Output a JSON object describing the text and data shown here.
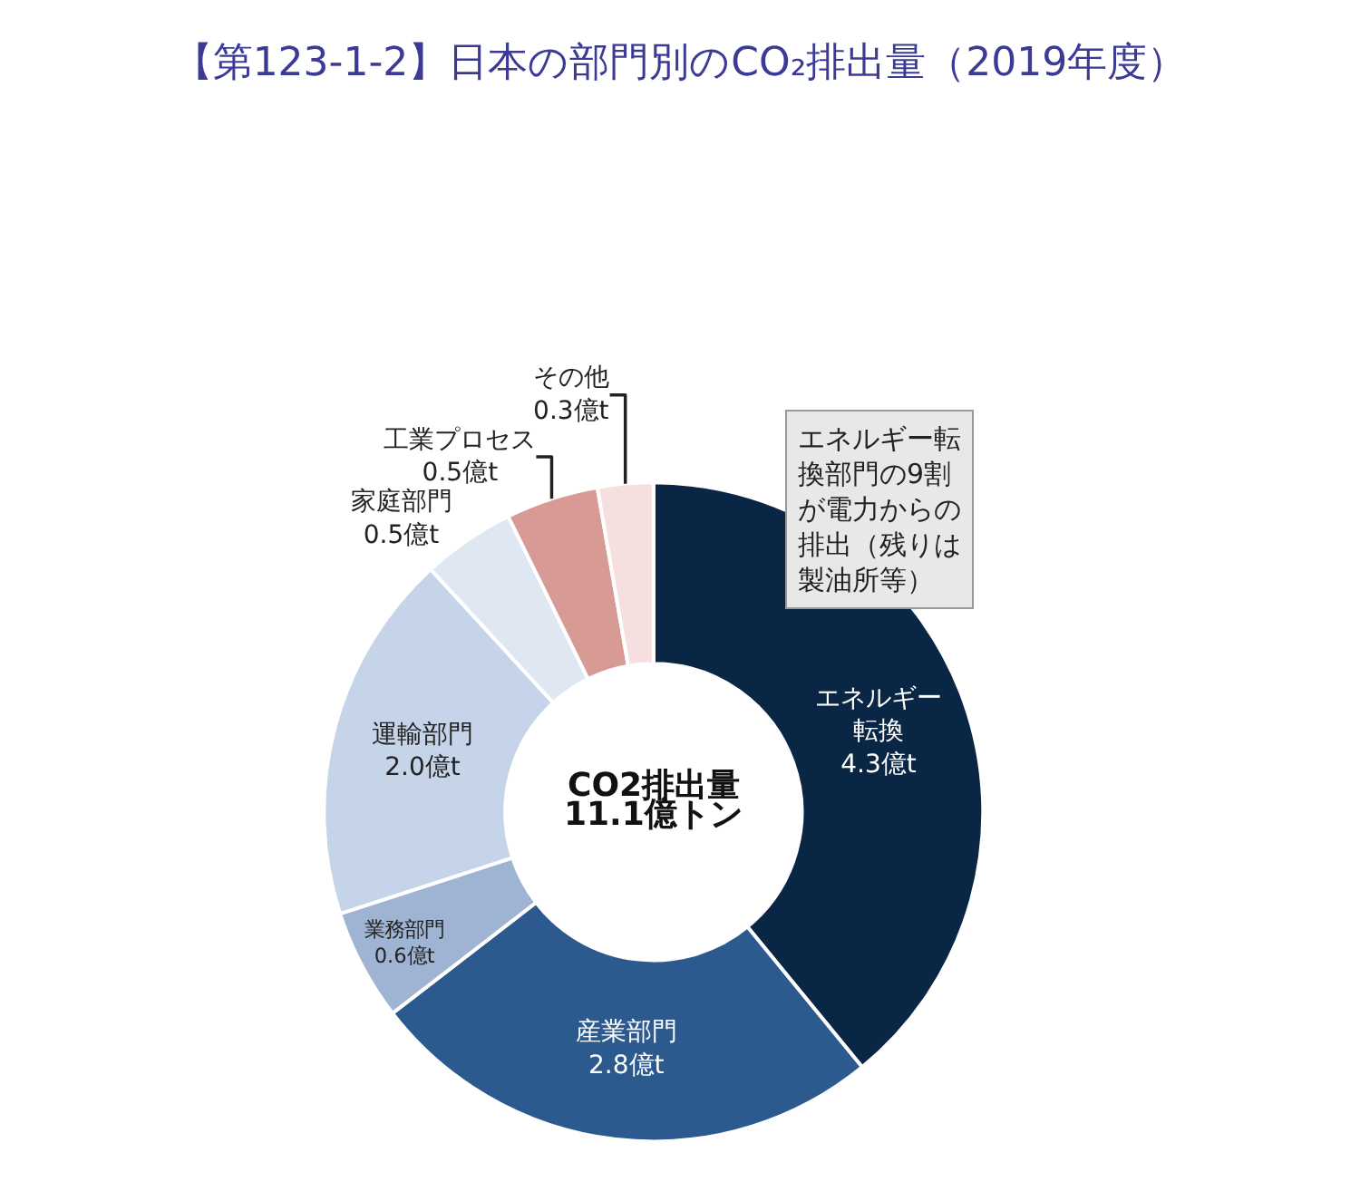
{
  "chart_data": {
    "type": "donut",
    "title": "【第123-1-2】日本の部門別のCO₂排出量（2019年度）",
    "categories": [
      "エネルギー転換",
      "産業部門",
      "業務部門",
      "運輸部門",
      "家庭部門",
      "工業プロセス",
      "その他"
    ],
    "values": [
      4.3,
      2.8,
      0.6,
      2.0,
      0.5,
      0.5,
      0.3
    ],
    "value_labels": [
      "4.3億t",
      "2.8億t",
      "0.6億t",
      "2.0億t",
      "0.5億t",
      "0.5億t",
      "0.3億t"
    ],
    "colors": [
      "#0a2645",
      "#2d5a8e",
      "#9fb4d3",
      "#c6d4e9",
      "#dfe7f3",
      "#d89a94",
      "#f5dfdf"
    ],
    "annotations": [
      "CO2排出量",
      "11.1億トン",
      "エネルギー転換部門の9割が電力からの排出（残りは製油所等）"
    ],
    "legend": false
  }
}
